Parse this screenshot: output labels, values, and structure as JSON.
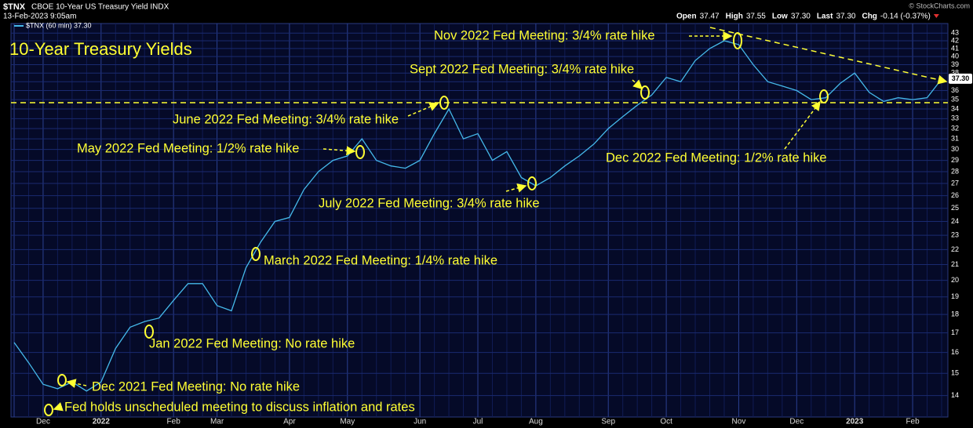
{
  "chart_data": {
    "type": "line",
    "header": {
      "symbol": "$TNX",
      "name": "CBOE 10-Year US Treasury Yield INDX",
      "date": "13-Feb-2023 9:05am",
      "legend": "$TNX (60 min) 37.30",
      "copyright": "© StockCharts.com",
      "quote": [
        [
          "Open",
          "37.47"
        ],
        [
          "High",
          "37.55"
        ],
        [
          "Low",
          "37.30"
        ],
        [
          "Last",
          "37.30"
        ],
        [
          "Chg",
          "-0.14 (-0.37%)"
        ]
      ]
    },
    "title": "10-Year Treasury Yields",
    "x": [
      "",
      null,
      "Dec",
      null,
      null,
      null,
      "2022",
      null,
      null,
      null,
      null,
      "Feb",
      null,
      null,
      "Mar",
      null,
      null,
      null,
      null,
      "Apr",
      null,
      null,
      null,
      "May",
      null,
      null,
      null,
      null,
      "Jun",
      null,
      null,
      null,
      "Jul",
      null,
      null,
      null,
      "Aug",
      null,
      null,
      null,
      null,
      "Sep",
      null,
      null,
      null,
      "Oct",
      null,
      null,
      null,
      null,
      "Nov",
      null,
      null,
      null,
      "Dec",
      null,
      null,
      null,
      "2023",
      null,
      null,
      null,
      "Feb",
      null,
      null
    ],
    "series": [
      {
        "name": "$TNX",
        "color": "#45b9ea",
        "values": [
          16.5,
          15.5,
          14.5,
          14.3,
          14.6,
          14.2,
          14.6,
          16.2,
          17.3,
          17.6,
          17.8,
          18.8,
          19.8,
          19.8,
          18.5,
          18.2,
          20.8,
          22.5,
          24.0,
          24.3,
          26.5,
          28.0,
          29.0,
          29.4,
          31.0,
          29.0,
          28.5,
          28.3,
          29.0,
          31.5,
          34.0,
          31.0,
          31.5,
          29.0,
          29.8,
          27.5,
          26.8,
          27.5,
          28.5,
          29.4,
          30.5,
          32.0,
          33.2,
          34.4,
          35.5,
          37.5,
          37.0,
          39.5,
          41.0,
          42.0,
          41.5,
          39.0,
          37.0,
          36.5,
          36.0,
          35.0,
          35.2,
          36.8,
          38.0,
          35.8,
          34.8,
          35.2,
          35.0,
          35.2,
          37.3
        ],
        "last_label": "37.30"
      }
    ],
    "ylim": [
      13.1,
      44.3
    ],
    "log": true,
    "yticks": [
      14,
      15,
      16,
      17,
      18,
      19,
      20,
      21,
      22,
      23,
      24,
      25,
      26,
      27,
      28,
      29,
      30,
      31,
      32,
      33,
      34,
      35,
      36,
      37,
      38,
      39,
      40,
      41,
      42,
      43
    ],
    "grid": true,
    "annotations": [
      "Nov 2022 Fed Meeting: 3/4% rate hike",
      "Sept 2022 Fed Meeting: 3/4% rate hike",
      "June 2022 Fed Meeting: 3/4% rate hike",
      "May 2022 Fed Meeting: 1/2% rate hike",
      "July 2022 Fed Meeting: 3/4% rate hike",
      "Dec 2022 Fed Meeting: 1/2% rate hike",
      "March 2022 Fed Meeting: 1/4% rate hike",
      "Jan 2022 Fed Meeting: No rate hike",
      "Dec 2021 Fed Meeting: No rate hike",
      "Fed holds unscheduled meeting to discuss inflation and rates"
    ]
  }
}
